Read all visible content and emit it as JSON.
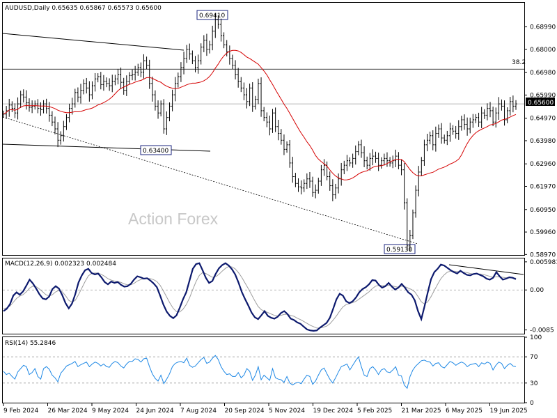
{
  "chart_data": [
    {
      "type": "candlestick",
      "title": "AUDUSD,Daily  0.65635 0.65867 0.65573 0.65600",
      "watermark": "Action Forex",
      "ylim": [
        0.5895,
        0.7005
      ],
      "y_ticks": [
        "0.68990",
        "0.68000",
        "0.66980",
        "0.65990",
        "0.64970",
        "0.63980",
        "0.62960",
        "0.61970",
        "0.60950",
        "0.59960",
        "0.58970"
      ],
      "current_price": "0.65600",
      "fib_label": "38.2",
      "fib_level": 0.6713,
      "annotations": [
        {
          "text": "0.69410",
          "value": 0.6941
        },
        {
          "text": "0.63400",
          "value": 0.634
        },
        {
          "text": "0.59130",
          "value": 0.5913
        }
      ],
      "x_ticks": [
        "9 Feb 2024",
        "26 Mar 2024",
        "9 May 2024",
        "24 Jun 2024",
        "7 Aug 2024",
        "20 Sep 2024",
        "5 Nov 2024",
        "19 Dec 2024",
        "5 Feb 2025",
        "21 Mar 2025",
        "6 May 2025",
        "19 Jun 2025"
      ],
      "close_series": [
        0.6515,
        0.653,
        0.6555,
        0.654,
        0.652,
        0.656,
        0.66,
        0.659,
        0.6565,
        0.6545,
        0.655,
        0.656,
        0.654,
        0.6535,
        0.656,
        0.654,
        0.651,
        0.648,
        0.645,
        0.64,
        0.642,
        0.646,
        0.65,
        0.654,
        0.656,
        0.661,
        0.659,
        0.662,
        0.665,
        0.663,
        0.66,
        0.664,
        0.667,
        0.668,
        0.6645,
        0.666,
        0.665,
        0.664,
        0.666,
        0.667,
        0.669,
        0.6655,
        0.662,
        0.666,
        0.6685,
        0.669,
        0.67,
        0.672,
        0.67,
        0.675,
        0.673,
        0.665,
        0.66,
        0.655,
        0.652,
        0.656,
        0.645,
        0.65,
        0.655,
        0.66,
        0.665,
        0.668,
        0.672,
        0.676,
        0.68,
        0.678,
        0.675,
        0.672,
        0.675,
        0.681,
        0.684,
        0.68,
        0.682,
        0.688,
        0.693,
        0.691,
        0.686,
        0.682,
        0.679,
        0.676,
        0.673,
        0.669,
        0.666,
        0.663,
        0.66,
        0.657,
        0.663,
        0.655,
        0.658,
        0.665,
        0.653,
        0.65,
        0.648,
        0.645,
        0.652,
        0.646,
        0.643,
        0.64,
        0.636,
        0.638,
        0.63,
        0.624,
        0.621,
        0.6195,
        0.619,
        0.621,
        0.623,
        0.622,
        0.617,
        0.618,
        0.622,
        0.627,
        0.629,
        0.624,
        0.62,
        0.616,
        0.619,
        0.623,
        0.627,
        0.629,
        0.631,
        0.63,
        0.632,
        0.635,
        0.638,
        0.6345,
        0.631,
        0.629,
        0.632,
        0.633,
        0.632,
        0.629,
        0.631,
        0.632,
        0.631,
        0.63,
        0.631,
        0.633,
        0.629,
        0.627,
        0.6125,
        0.5935,
        0.598,
        0.608,
        0.618,
        0.626,
        0.631,
        0.638,
        0.64,
        0.642,
        0.638,
        0.643,
        0.645,
        0.641,
        0.64,
        0.642,
        0.645,
        0.644,
        0.643,
        0.646,
        0.649,
        0.647,
        0.645,
        0.648,
        0.649,
        0.65,
        0.648,
        0.652,
        0.651,
        0.654,
        0.653,
        0.648,
        0.652,
        0.656,
        0.655,
        0.649,
        0.653,
        0.657,
        0.655,
        0.656
      ]
    },
    {
      "type": "line",
      "title": "MACD(12,26,9) 0.002323 0.002484",
      "ylim": [
        -0.0093,
        0.0067
      ],
      "y_ticks": [
        "0.005981",
        "0.00",
        "-0.0085"
      ],
      "y_tick_values": [
        0.005981,
        0.0,
        -0.0085
      ],
      "trend_label": "",
      "macd_series": [
        -0.0045,
        -0.004,
        -0.003,
        -0.0012,
        -0.0005,
        -0.001,
        -0.0003,
        0.0009,
        0.0022,
        0.0014,
        0.0003,
        -0.0009,
        -0.0018,
        -0.002,
        -0.0014,
        0.0002,
        0.0008,
        0.0003,
        -0.0011,
        -0.0028,
        -0.0039,
        -0.0029,
        -0.0009,
        0.0016,
        0.0031,
        0.0042,
        0.0045,
        0.0036,
        0.0033,
        0.0035,
        0.0027,
        0.0017,
        0.0012,
        0.0018,
        0.0015,
        0.0017,
        0.0011,
        0.0007,
        0.0008,
        0.0013,
        0.0022,
        0.0029,
        0.0027,
        0.0024,
        0.0025,
        0.002,
        0.0014,
        0.0006,
        -0.0012,
        -0.0031,
        -0.0046,
        -0.0055,
        -0.006,
        -0.0054,
        -0.0038,
        -0.002,
        -0.0005,
        0.002,
        0.0045,
        0.0055,
        0.0057,
        0.0042,
        0.0026,
        0.0015,
        0.0019,
        0.0034,
        0.0046,
        0.0053,
        0.0057,
        0.0052,
        0.0044,
        0.0033,
        0.0016,
        -0.0004,
        -0.0019,
        -0.0033,
        -0.0048,
        -0.0058,
        -0.0062,
        -0.0054,
        -0.0045,
        -0.0055,
        -0.0059,
        -0.0061,
        -0.0057,
        -0.0049,
        -0.0045,
        -0.0051,
        -0.0061,
        -0.0064,
        -0.0069,
        -0.0072,
        -0.0078,
        -0.0084,
        -0.0086,
        -0.0087,
        -0.0086,
        -0.008,
        -0.0075,
        -0.007,
        -0.0059,
        -0.004,
        -0.002,
        -0.0008,
        -0.0012,
        -0.0024,
        -0.0028,
        -0.0024,
        -0.0016,
        -0.0005,
        0.0002,
        0.0006,
        0.0012,
        0.0021,
        0.002,
        0.0011,
        0.0005,
        0.0008,
        0.0015,
        0.0007,
        0.0001,
        0.0005,
        0.0013,
        0.0005,
        -0.0005,
        -0.001,
        -0.0022,
        -0.0045,
        -0.0062,
        -0.0035,
        -0.0005,
        0.0023,
        0.0038,
        0.0045,
        0.0054,
        0.0052,
        0.0047,
        0.0042,
        0.0038,
        0.0035,
        0.0041,
        0.0036,
        0.0032,
        0.0031,
        0.0034,
        0.0035,
        0.0032,
        0.0029,
        0.0024,
        0.0022,
        0.0026,
        0.0038,
        0.0029,
        0.0022,
        0.0024,
        0.0027,
        0.0026,
        0.0023
      ],
      "signal_series": [
        -0.004,
        -0.0038,
        -0.0034,
        -0.0026,
        -0.0018,
        -0.0013,
        -0.001,
        -0.0004,
        0.0004,
        0.0008,
        0.0007,
        0.0002,
        -0.0004,
        -0.001,
        -0.0013,
        -0.001,
        -0.0004,
        -0.0001,
        -0.0004,
        -0.0012,
        -0.0022,
        -0.0026,
        -0.0022,
        -0.001,
        0.0004,
        0.0018,
        0.003,
        0.0035,
        0.0036,
        0.0036,
        0.0033,
        0.0029,
        0.0024,
        0.0021,
        0.0019,
        0.0018,
        0.0016,
        0.0013,
        0.0011,
        0.0011,
        0.0014,
        0.0019,
        0.0022,
        0.0024,
        0.0025,
        0.0024,
        0.0022,
        0.0018,
        0.001,
        -0.0002,
        -0.0015,
        -0.0028,
        -0.0039,
        -0.0046,
        -0.0047,
        -0.0041,
        -0.0031,
        -0.0017,
        0.0001,
        0.0018,
        0.0031,
        0.0037,
        0.0035,
        0.0031,
        0.0027,
        0.0028,
        0.0033,
        0.004,
        0.0046,
        0.005,
        0.0049,
        0.0045,
        0.0037,
        0.0027,
        0.0015,
        0.0003,
        -0.001,
        -0.0023,
        -0.0035,
        -0.0042,
        -0.0045,
        -0.0048,
        -0.0051,
        -0.0054,
        -0.0055,
        -0.0054,
        -0.0052,
        -0.0052,
        -0.0054,
        -0.0056,
        -0.006,
        -0.0063,
        -0.0067,
        -0.0071,
        -0.0075,
        -0.0078,
        -0.0081,
        -0.0081,
        -0.0079,
        -0.0077,
        -0.0072,
        -0.0064,
        -0.0055,
        -0.0045,
        -0.0036,
        -0.0031,
        -0.0029,
        -0.0027,
        -0.0024,
        -0.0019,
        -0.0014,
        -0.0009,
        -0.0004,
        0.0003,
        0.0008,
        0.001,
        0.0009,
        0.0009,
        0.001,
        0.0009,
        0.0007,
        0.0006,
        0.0008,
        0.0007,
        0.0004,
        0.0001,
        -0.0004,
        -0.0014,
        -0.0025,
        -0.003,
        -0.0025,
        -0.0014,
        -0.0001,
        0.0012,
        0.0024,
        0.0032,
        0.0038,
        0.004,
        0.004,
        0.0039,
        0.0039,
        0.0038,
        0.0037,
        0.0035,
        0.0034,
        0.0034,
        0.0034,
        0.0033,
        0.0031,
        0.0029,
        0.0027,
        0.0028,
        0.0028,
        0.0027,
        0.0026,
        0.0026,
        0.0026,
        0.0025
      ]
    },
    {
      "type": "line",
      "title": "RSI(14) 55.2846",
      "ylim": [
        0,
        100
      ],
      "y_ticks": [
        "100",
        "70",
        "30",
        "0"
      ],
      "y_tick_values": [
        100,
        70,
        30,
        0
      ],
      "series": [
        48,
        43,
        45,
        40,
        36,
        47,
        52,
        57,
        55,
        43,
        46,
        52,
        40,
        36,
        52,
        55,
        51,
        42,
        38,
        32,
        45,
        50,
        56,
        58,
        60,
        63,
        55,
        58,
        60,
        62,
        55,
        59,
        62,
        60,
        56,
        59,
        55,
        54,
        60,
        63,
        61,
        56,
        53,
        59,
        63,
        63,
        67,
        66,
        62,
        67,
        68,
        55,
        44,
        37,
        33,
        42,
        29,
        36,
        44,
        55,
        60,
        62,
        63,
        61,
        68,
        57,
        54,
        56,
        61,
        66,
        69,
        60,
        62,
        68,
        72,
        66,
        55,
        48,
        43,
        44,
        40,
        40,
        46,
        38,
        42,
        52,
        48,
        34,
        42,
        55,
        35,
        42,
        38,
        34,
        52,
        38,
        36,
        35,
        31,
        40,
        30,
        27,
        30,
        31,
        29,
        36,
        42,
        40,
        28,
        33,
        42,
        50,
        53,
        44,
        36,
        30,
        38,
        47,
        55,
        57,
        59,
        50,
        57,
        64,
        70,
        55,
        42,
        40,
        52,
        55,
        50,
        43,
        50,
        52,
        47,
        46,
        50,
        55,
        42,
        41,
        27,
        22,
        40,
        50,
        56,
        60,
        64,
        65,
        63,
        62,
        56,
        60,
        61,
        55,
        53,
        58,
        63,
        61,
        57,
        60,
        62,
        60,
        55,
        58,
        59,
        60,
        55,
        61,
        59,
        62,
        60,
        50,
        57,
        62,
        60,
        52,
        57,
        60,
        56,
        55
      ]
    }
  ]
}
